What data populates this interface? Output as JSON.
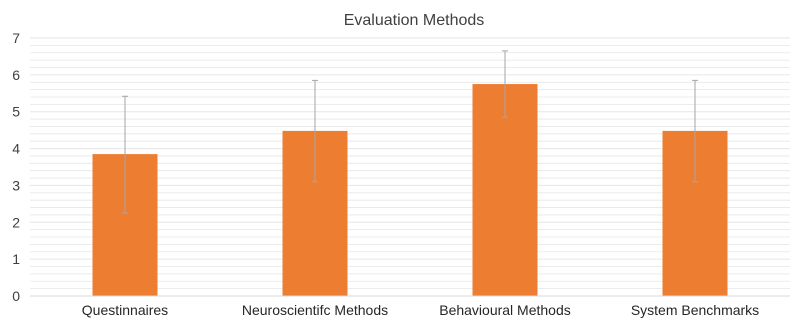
{
  "chart_data": {
    "type": "bar",
    "title": "Evaluation Methods",
    "categories": [
      "Questinnaires",
      "Neuroscientifc Methods",
      "Behavioural Methods",
      "System Benchmarks"
    ],
    "values": [
      3.85,
      4.48,
      5.75,
      4.48
    ],
    "error_low": [
      2.25,
      3.1,
      4.85,
      3.1
    ],
    "error_high": [
      5.42,
      5.85,
      6.65,
      5.85
    ],
    "y_ticks": [
      "0",
      "1",
      "2",
      "3",
      "4",
      "5",
      "6",
      "7"
    ],
    "ylim": [
      0,
      7
    ],
    "grid": true,
    "minor_grid_step": 0.2,
    "legend": "none",
    "colors": {
      "bar": "#ED7D31",
      "grid": "#E6E6E6",
      "error_bar": "#A6A6A6",
      "axis": "#D9D9D9"
    }
  }
}
